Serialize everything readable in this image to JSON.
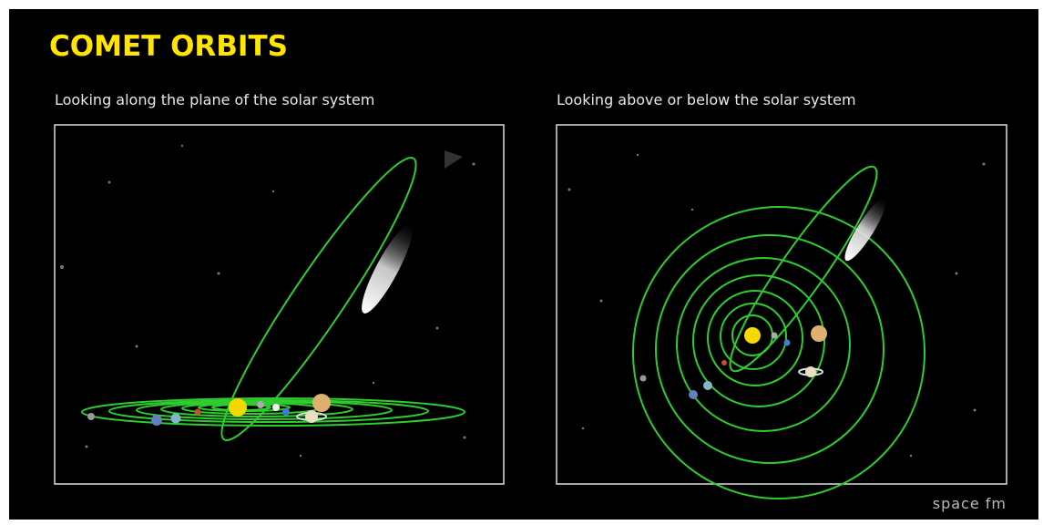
{
  "header": {
    "title": "COMET ORBITS"
  },
  "panels": [
    {
      "caption": "Looking along the plane of the solar system"
    },
    {
      "caption": "Looking above or below the solar system"
    }
  ],
  "footer": {
    "logo": "space fm"
  }
}
